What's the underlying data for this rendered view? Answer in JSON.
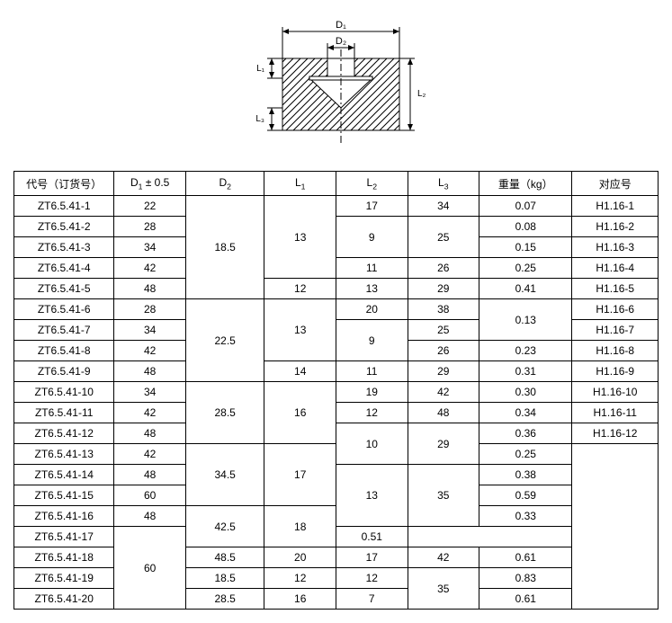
{
  "diagram": {
    "labels": {
      "D1": "D₁",
      "D2": "D₂",
      "L1": "L₁",
      "L2": "L₂",
      "L3": "L₃"
    },
    "colors": {
      "stroke": "#000000",
      "fill": "#ffffff"
    }
  },
  "table": {
    "headers": {
      "code": "代号（订货号）",
      "d1": "D₁ ± 0.5",
      "d2": "D₂",
      "l1": "L₁",
      "l2": "L₂",
      "l3": "L₃",
      "weight": "重量（kg）",
      "ref": "对应号"
    },
    "groups": [
      {
        "d2": "18.5",
        "rows": [
          {
            "code": "ZT6.5.41-1",
            "d1": "22",
            "l1": "13",
            "l1_span": 4,
            "l2": "17",
            "l2_span": 1,
            "l3": "34",
            "l3_span": 1,
            "wt": "0.07",
            "ref": "H1.16-1"
          },
          {
            "code": "ZT6.5.41-2",
            "d1": "28",
            "l2": "9",
            "l2_span": 2,
            "l3": "25",
            "l3_span": 2,
            "wt": "0.08",
            "ref": "H1.16-2"
          },
          {
            "code": "ZT6.5.41-3",
            "d1": "34",
            "wt": "0.15",
            "ref": "H1.16-3"
          },
          {
            "code": "ZT6.5.41-4",
            "d1": "42",
            "l2": "11",
            "l2_span": 1,
            "l3": "26",
            "l3_span": 1,
            "wt": "0.25",
            "ref": "H1.16-4"
          },
          {
            "code": "ZT6.5.41-5",
            "d1": "48",
            "l1": "12",
            "l1_span": 1,
            "l2": "13",
            "l2_span": 1,
            "l3": "29",
            "l3_span": 1,
            "wt": "0.41",
            "ref": "H1.16-5"
          }
        ]
      },
      {
        "d2": "22.5",
        "rows": [
          {
            "code": "ZT6.5.41-6",
            "d1": "28",
            "l1": "13",
            "l1_span": 3,
            "l2": "20",
            "l2_span": 1,
            "l3": "38",
            "l3_span": 1,
            "wt": "0.13",
            "wt_span": 2,
            "ref": "H1.16-6"
          },
          {
            "code": "ZT6.5.41-7",
            "d1": "34",
            "l2": "9",
            "l2_span": 2,
            "l3": "25",
            "l3_span": 1,
            "ref": "H1.16-7"
          },
          {
            "code": "ZT6.5.41-8",
            "d1": "42",
            "l3": "26",
            "l3_span": 1,
            "wt": "0.23",
            "ref": "H1.16-8"
          },
          {
            "code": "ZT6.5.41-9",
            "d1": "48",
            "l1": "14",
            "l1_span": 1,
            "l2": "11",
            "l2_span": 1,
            "l3": "29",
            "l3_span": 1,
            "wt": "0.31",
            "ref": "H1.16-9"
          }
        ]
      },
      {
        "d2": "28.5",
        "rows": [
          {
            "code": "ZT6.5.41-10",
            "d1": "34",
            "l1": "16",
            "l1_span": 3,
            "l2": "19",
            "l2_span": 1,
            "l3": "42",
            "l3_span": 1,
            "wt": "0.30",
            "ref": "H1.16-10"
          },
          {
            "code": "ZT6.5.41-11",
            "d1": "42",
            "l2": "12",
            "l2_span": 1,
            "l3": "48",
            "l3_span": 1,
            "wt": "0.34",
            "ref": "H1.16-11"
          },
          {
            "code": "ZT6.5.41-12",
            "d1": "48",
            "l2": "10",
            "l2_span": 2,
            "l3": "29",
            "l3_span": 2,
            "wt": "0.36",
            "ref": "H1.16-12"
          }
        ]
      },
      {
        "d2": "34.5",
        "rows": [
          {
            "code": "ZT6.5.41-13",
            "d1": "42",
            "l1": "17",
            "l1_span": 3,
            "wt": "0.25",
            "ref": "",
            "ref_blank_span": 8
          },
          {
            "code": "ZT6.5.41-14",
            "d1": "48",
            "l2": "13",
            "l2_span": 3,
            "l3": "35",
            "l3_span": 3,
            "wt": "0.38"
          },
          {
            "code": "ZT6.5.41-15",
            "d1": "60",
            "wt": "0.59"
          }
        ]
      },
      {
        "d2": "42.5",
        "rows": [
          {
            "code": "ZT6.5.41-16",
            "d1": "48",
            "l1": "18",
            "l1_span": 2,
            "wt": "0.33"
          },
          {
            "code": "ZT6.5.41-17",
            "d1": "60",
            "d1_span": 4,
            "wt": "0.51"
          }
        ]
      },
      {
        "d2": "48.5",
        "rows": [
          {
            "code": "ZT6.5.41-18",
            "l1": "20",
            "l1_span": 1,
            "l2": "17",
            "l2_span": 1,
            "l3": "42",
            "l3_span": 1,
            "wt": "0.61"
          }
        ]
      },
      {
        "d2": "18.5",
        "rows": [
          {
            "code": "ZT6.5.41-19",
            "l1": "12",
            "l1_span": 1,
            "l2": "12",
            "l2_span": 1,
            "l3": "35",
            "l3_span": 2,
            "wt": "0.83"
          }
        ]
      },
      {
        "d2": "28.5",
        "rows": [
          {
            "code": "ZT6.5.41-20",
            "l1": "16",
            "l1_span": 1,
            "l2": "7",
            "l2_span": 1,
            "wt": "0.61"
          }
        ]
      }
    ]
  }
}
